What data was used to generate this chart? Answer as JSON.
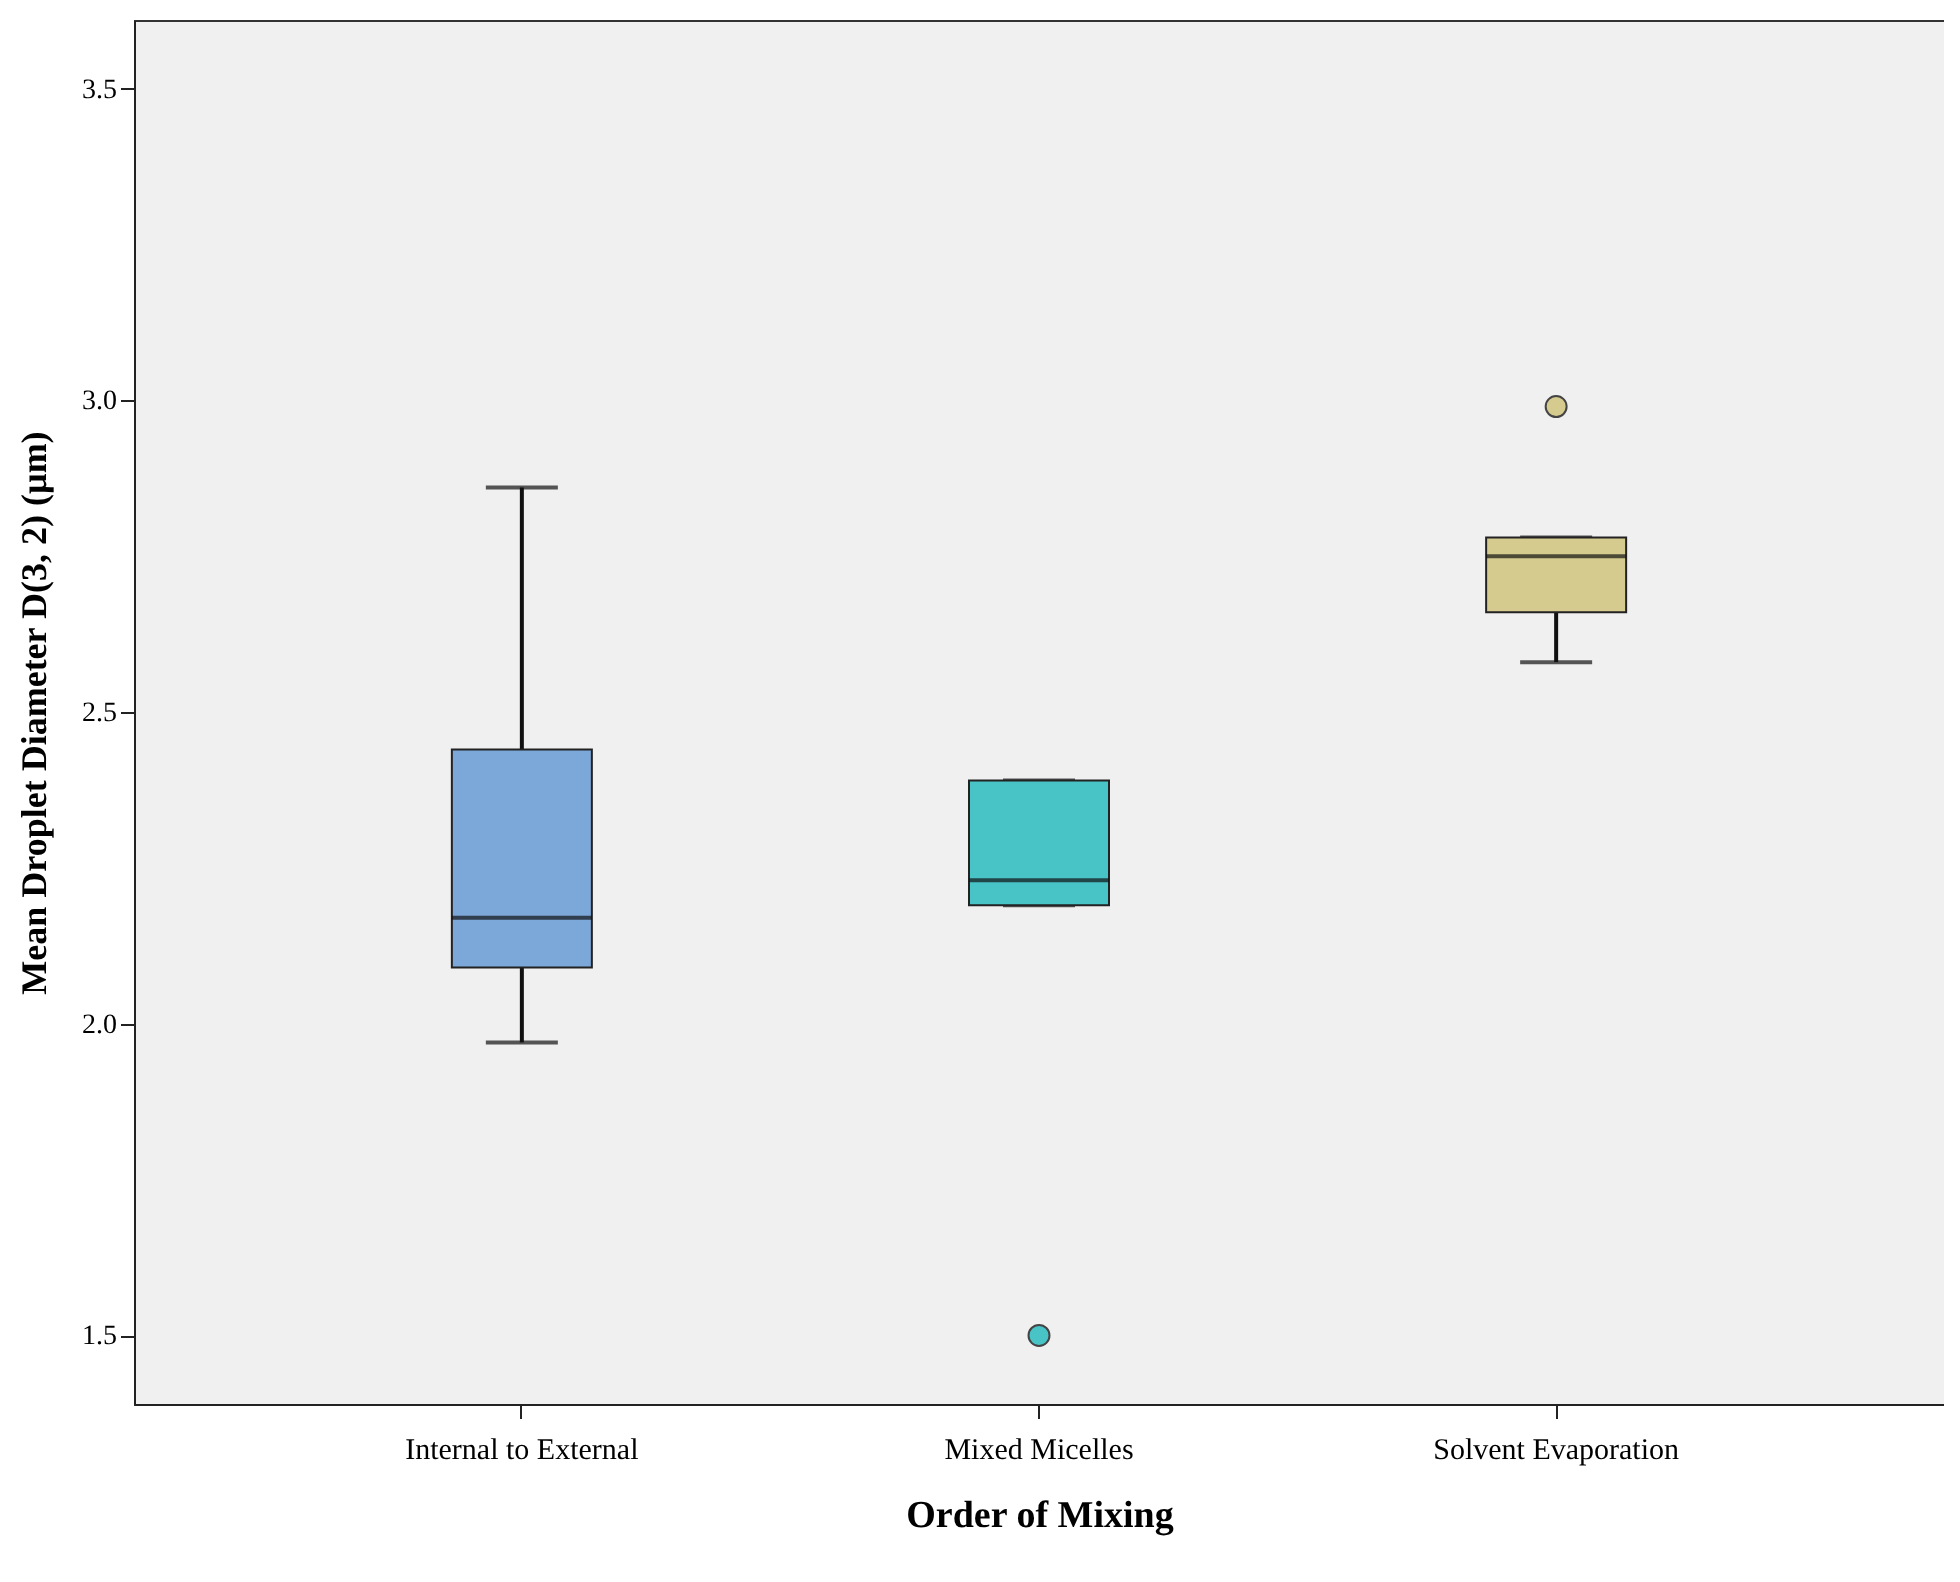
{
  "chart_data": {
    "type": "box",
    "xlabel": "Order of Mixing",
    "ylabel": "Mean Droplet Diameter D(3, 2) (µm)",
    "categories": [
      "Internal to External",
      "Mixed Micelles",
      "Solvent Evaporation"
    ],
    "colors": [
      "#7ba7d9",
      "#48c3c6",
      "#d5cb8f"
    ],
    "boxes": [
      {
        "low": 1.97,
        "q1": 2.09,
        "median": 2.17,
        "q3": 2.44,
        "high": 2.86
      },
      {
        "low": 2.19,
        "q1": 2.19,
        "median": 2.23,
        "q3": 2.39,
        "high": 2.39,
        "outliers": [
          1.5
        ]
      },
      {
        "low": 2.58,
        "q1": 2.66,
        "median": 2.75,
        "q3": 2.78,
        "high": 2.78,
        "outliers": [
          2.99
        ]
      }
    ],
    "ylim": [
      1.39,
      3.61
    ],
    "yticks": [
      {
        "value": 1.5,
        "label": "1.5"
      },
      {
        "value": 2,
        "label": "2.0"
      },
      {
        "value": 2.5,
        "label": "2.5"
      },
      {
        "value": 3,
        "label": "3.0"
      },
      {
        "value": 3.5,
        "label": "3.5"
      }
    ],
    "grid": false,
    "legend": false
  }
}
